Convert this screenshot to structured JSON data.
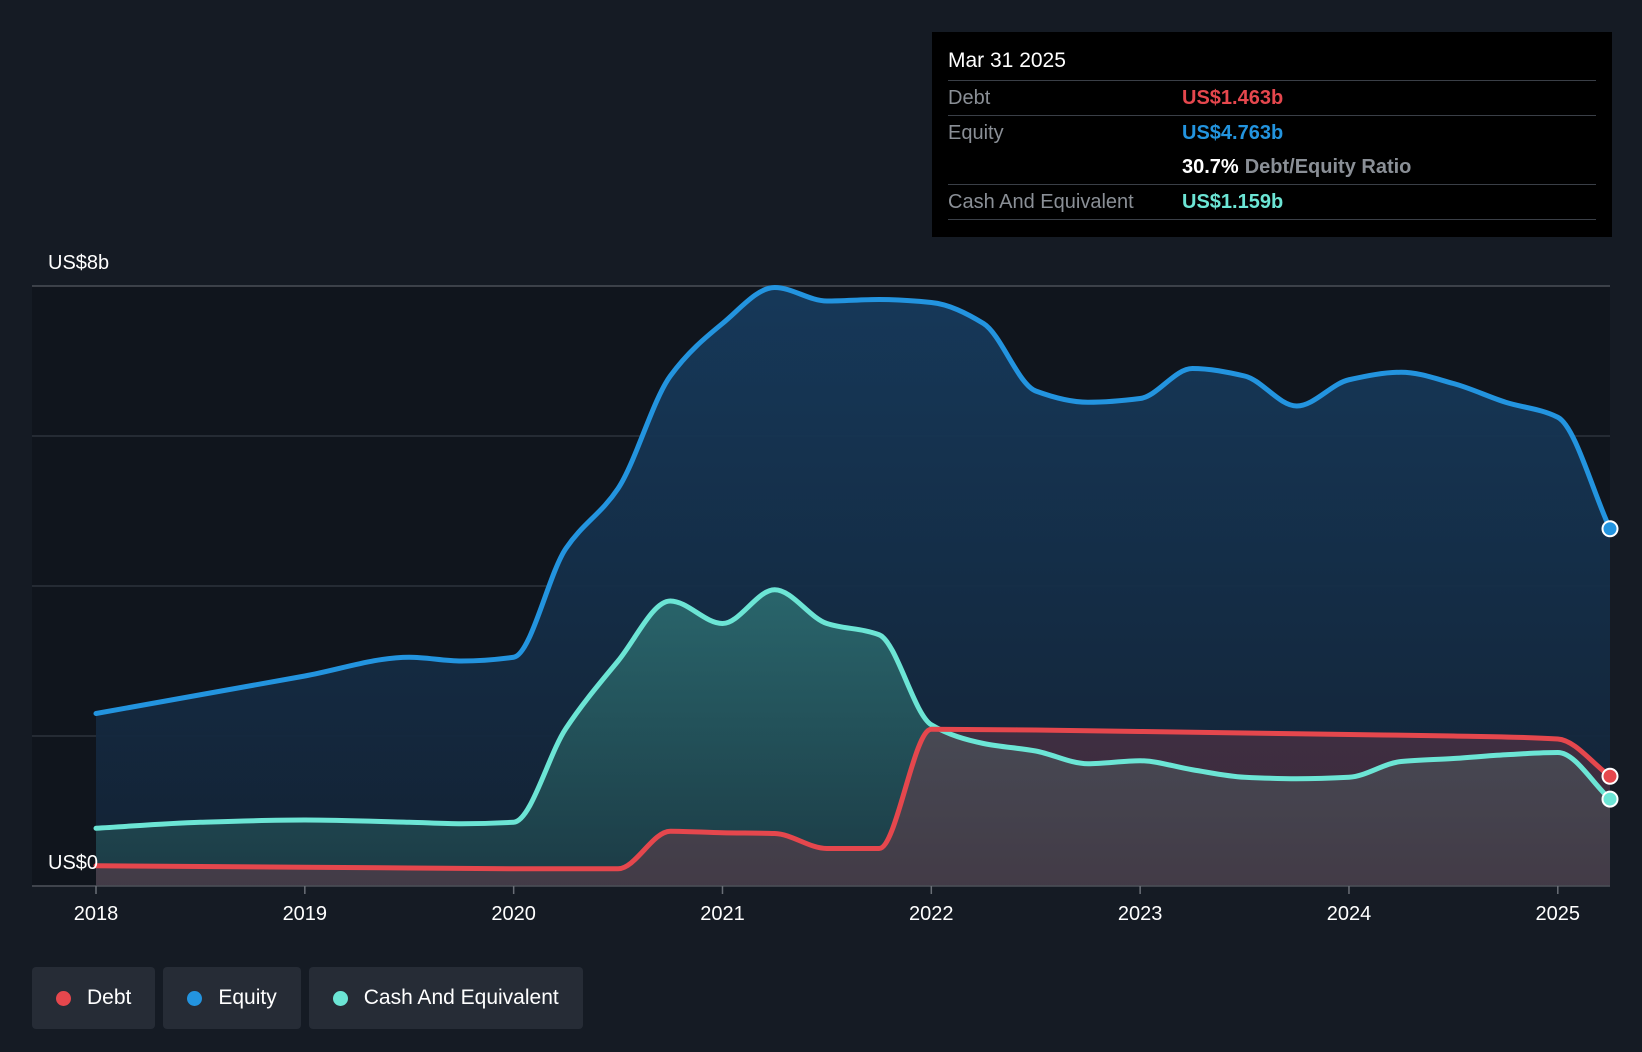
{
  "tooltip": {
    "date": "Mar 31 2025",
    "rows": [
      {
        "label": "Debt",
        "value": "US$1.463b",
        "color": "#e5474d"
      },
      {
        "label": "Equity",
        "value": "US$4.763b",
        "color": "#2394df"
      },
      {
        "ratio_value": "30.7%",
        "ratio_label": "Debt/Equity Ratio"
      },
      {
        "label": "Cash And Equivalent",
        "value": "US$1.159b",
        "color": "#6ce5d5"
      }
    ]
  },
  "legend": [
    {
      "label": "Debt",
      "color": "#e5474d"
    },
    {
      "label": "Equity",
      "color": "#2394df"
    },
    {
      "label": "Cash And Equivalent",
      "color": "#6ce5d5"
    }
  ],
  "chart_data": {
    "type": "area",
    "title": "",
    "xlabel": "",
    "ylabel": "",
    "y_tick_labels": [
      "US$0",
      "US$8b"
    ],
    "ylim": [
      0,
      8
    ],
    "y_unit": "US$ billions",
    "grid": true,
    "gridlines": [
      0,
      2,
      4,
      6,
      8
    ],
    "xlim": [
      2018.0,
      2025.25
    ],
    "x_ticks": [
      "2018",
      "2019",
      "2020",
      "2021",
      "2022",
      "2023",
      "2024",
      "2025"
    ],
    "legend_position": "bottom-left",
    "series": [
      {
        "name": "Equity",
        "color": "#2394df",
        "points": [
          [
            2018.0,
            2.3
          ],
          [
            2018.5,
            2.55
          ],
          [
            2019.0,
            2.8
          ],
          [
            2019.5,
            3.05
          ],
          [
            2019.75,
            3.0
          ],
          [
            2020.0,
            3.05
          ],
          [
            2020.25,
            4.5
          ],
          [
            2020.5,
            5.3
          ],
          [
            2020.75,
            6.8
          ],
          [
            2021.0,
            7.5
          ],
          [
            2021.25,
            7.98
          ],
          [
            2021.5,
            7.8
          ],
          [
            2021.75,
            7.82
          ],
          [
            2022.0,
            7.78
          ],
          [
            2022.25,
            7.5
          ],
          [
            2022.5,
            6.6
          ],
          [
            2022.75,
            6.45
          ],
          [
            2023.0,
            6.5
          ],
          [
            2023.25,
            6.9
          ],
          [
            2023.5,
            6.8
          ],
          [
            2023.75,
            6.4
          ],
          [
            2024.0,
            6.75
          ],
          [
            2024.25,
            6.85
          ],
          [
            2024.5,
            6.7
          ],
          [
            2024.75,
            6.45
          ],
          [
            2025.0,
            6.25
          ],
          [
            2025.25,
            4.763
          ]
        ]
      },
      {
        "name": "Cash And Equivalent",
        "color": "#6ce5d5",
        "points": [
          [
            2018.0,
            0.77
          ],
          [
            2018.5,
            0.85
          ],
          [
            2019.0,
            0.88
          ],
          [
            2019.5,
            0.85
          ],
          [
            2019.75,
            0.83
          ],
          [
            2020.0,
            0.85
          ],
          [
            2020.25,
            2.1
          ],
          [
            2020.5,
            3.0
          ],
          [
            2020.75,
            3.8
          ],
          [
            2021.0,
            3.5
          ],
          [
            2021.25,
            3.95
          ],
          [
            2021.5,
            3.5
          ],
          [
            2021.75,
            3.35
          ],
          [
            2022.0,
            2.15
          ],
          [
            2022.25,
            1.9
          ],
          [
            2022.5,
            1.8
          ],
          [
            2022.75,
            1.63
          ],
          [
            2023.0,
            1.67
          ],
          [
            2023.25,
            1.55
          ],
          [
            2023.5,
            1.45
          ],
          [
            2023.75,
            1.43
          ],
          [
            2024.0,
            1.45
          ],
          [
            2024.25,
            1.66
          ],
          [
            2024.5,
            1.7
          ],
          [
            2024.75,
            1.75
          ],
          [
            2025.0,
            1.78
          ],
          [
            2025.25,
            1.159
          ]
        ]
      },
      {
        "name": "Debt",
        "color": "#e5474d",
        "points": [
          [
            2018.0,
            0.27
          ],
          [
            2018.5,
            0.26
          ],
          [
            2019.0,
            0.25
          ],
          [
            2019.5,
            0.24
          ],
          [
            2020.0,
            0.23
          ],
          [
            2020.5,
            0.23
          ],
          [
            2020.75,
            0.73
          ],
          [
            2021.0,
            0.71
          ],
          [
            2021.25,
            0.7
          ],
          [
            2021.5,
            0.5
          ],
          [
            2021.75,
            0.5
          ],
          [
            2022.0,
            2.09
          ],
          [
            2022.5,
            2.08
          ],
          [
            2023.0,
            2.06
          ],
          [
            2023.5,
            2.04
          ],
          [
            2024.0,
            2.02
          ],
          [
            2024.5,
            2.0
          ],
          [
            2025.0,
            1.96
          ],
          [
            2025.25,
            1.463
          ]
        ]
      }
    ]
  }
}
